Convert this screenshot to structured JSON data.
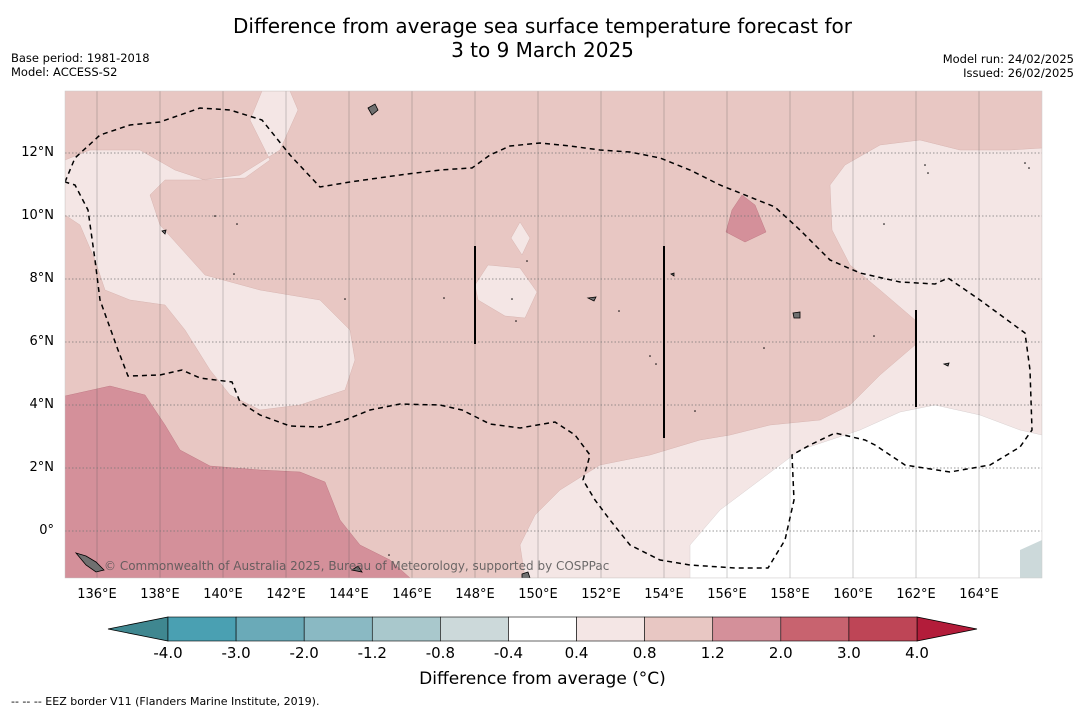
{
  "title_line1": "Difference from average sea surface temperature forecast for",
  "title_line2": "3 to 9 March 2025",
  "base_period": "Base period: 1981-2018",
  "model": "Model: ACCESS-S2",
  "model_run": "Model run: 24/02/2025",
  "issued": "Issued: 26/02/2025",
  "credit": "© Commonwealth of Australia 2025, Bureau of Meteorology, supported by COSPPac",
  "footnote": "--  --  -- EEZ border V11 (Flanders Marine Institute, 2019).",
  "colorbar": {
    "title": "Difference from average (°C)",
    "ticks": [
      "-4.0",
      "-3.0",
      "-2.0",
      "-1.2",
      "-0.8",
      "-0.4",
      "0.4",
      "0.8",
      "1.2",
      "2.0",
      "3.0",
      "4.0"
    ],
    "colors": [
      "#4aa0b2",
      "#6aaab8",
      "#8ab9c3",
      "#a9c8cc",
      "#ccd9da",
      "#ffffff",
      "#f4e6e5",
      "#e8c7c3",
      "#d4909a",
      "#c8636f",
      "#be4556"
    ],
    "extend_low_color": "#3f8790",
    "extend_high_color": "#b31c3a"
  },
  "axes": {
    "lat_labels": [
      "12°N",
      "10°N",
      "8°N",
      "6°N",
      "4°N",
      "2°N",
      "0°"
    ],
    "lon_labels": [
      "136°E",
      "138°E",
      "140°E",
      "142°E",
      "144°E",
      "146°E",
      "148°E",
      "150°E",
      "152°E",
      "154°E",
      "156°E",
      "158°E",
      "160°E",
      "162°E",
      "164°E"
    ]
  },
  "colors": {
    "anomaly_0_4_to_0_8": "#f4e6e5",
    "anomaly_0_8_to_1_2": "#e8c7c3",
    "anomaly_1_2_to_2_0": "#d4909a",
    "neutral": "#ffffff",
    "land": "#707070"
  }
}
